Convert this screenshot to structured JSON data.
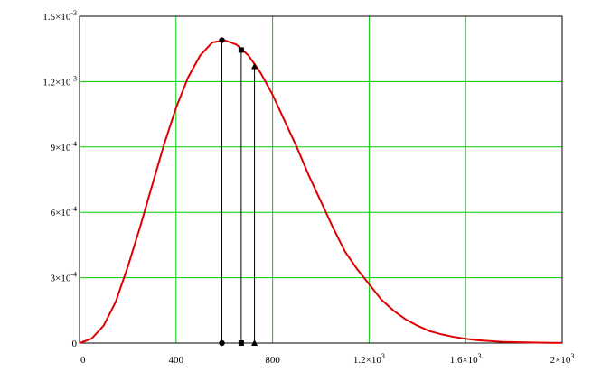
{
  "chart_data": {
    "type": "line",
    "title": "",
    "xlabel": "",
    "ylabel": "",
    "xlim": [
      0,
      2000
    ],
    "ylim": [
      0,
      0.0015
    ],
    "grid": true,
    "x_ticks": [
      {
        "value": 0,
        "base": "0",
        "exp": ""
      },
      {
        "value": 400,
        "base": "400",
        "exp": ""
      },
      {
        "value": 800,
        "base": "800",
        "exp": ""
      },
      {
        "value": 1200,
        "base": "1.2×10",
        "exp": "3"
      },
      {
        "value": 1600,
        "base": "1.6×10",
        "exp": "3"
      },
      {
        "value": 2000,
        "base": "2×10",
        "exp": "3"
      }
    ],
    "y_ticks": [
      {
        "value": 0,
        "base": "0",
        "exp": ""
      },
      {
        "value": 0.0003,
        "base": "3×10",
        "exp": "-4"
      },
      {
        "value": 0.0006,
        "base": "6×10",
        "exp": "-4"
      },
      {
        "value": 0.0009,
        "base": "9×10",
        "exp": "-4"
      },
      {
        "value": 0.0012,
        "base": "1.2×10",
        "exp": "-3"
      },
      {
        "value": 0.0015,
        "base": "1.5×10",
        "exp": "-3"
      }
    ],
    "series": [
      {
        "color": "#e00000",
        "x": [
          0,
          50,
          100,
          150,
          200,
          250,
          300,
          350,
          400,
          450,
          500,
          550,
          600,
          650,
          700,
          750,
          800,
          850,
          900,
          950,
          1000,
          1050,
          1100,
          1150,
          1200,
          1250,
          1300,
          1350,
          1400,
          1450,
          1500,
          1550,
          1600,
          1650,
          1700,
          1750,
          1800,
          1850,
          1900,
          1950,
          2000
        ],
        "y": [
          0,
          2e-05,
          8e-05,
          0.00019,
          0.00035,
          0.00053,
          0.00072,
          0.00091,
          0.00108,
          0.00122,
          0.00132,
          0.00138,
          0.00139,
          0.00137,
          0.00132,
          0.00124,
          0.00114,
          0.00102,
          0.0009,
          0.00077,
          0.00065,
          0.00053,
          0.00042,
          0.00034,
          0.00027,
          0.0002,
          0.00015,
          0.00011,
          8e-05,
          5.5e-05,
          4e-05,
          2.8e-05,
          2e-05,
          1.3e-05,
          9e-06,
          6e-06,
          4e-06,
          3e-06,
          2e-06,
          1e-06,
          1e-06
        ]
      }
    ],
    "markers": [
      {
        "shape": "circle",
        "x": 590,
        "y": 0.00139
      },
      {
        "shape": "square",
        "x": 670,
        "y": 0.001345
      },
      {
        "shape": "triangle",
        "x": 725,
        "y": 0.00127
      }
    ],
    "colors": {
      "grid": "#00cc00",
      "frame": "#000000",
      "curve": "#e00000",
      "markers": "#000000"
    }
  }
}
